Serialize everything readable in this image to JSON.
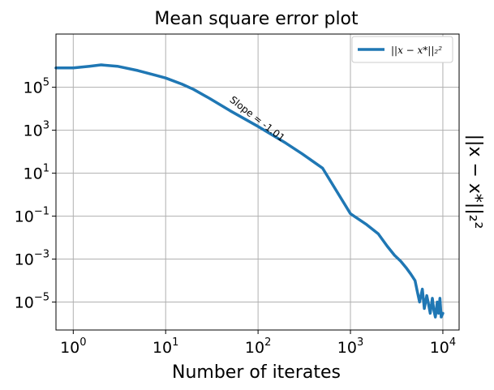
{
  "chart_data": {
    "type": "line",
    "title": "Mean square error plot",
    "xlabel": "Number of iterates",
    "ylabel": "||x − x*||₂²",
    "xscale": "log",
    "yscale": "log",
    "xlim": [
      0.65,
      15000
    ],
    "ylim": [
      5e-07,
      30000000.0
    ],
    "grid": true,
    "legend_placement": "top-right",
    "x_ticks": [
      {
        "base": "10",
        "exp": "0",
        "value": 1
      },
      {
        "base": "10",
        "exp": "1",
        "value": 10
      },
      {
        "base": "10",
        "exp": "2",
        "value": 100
      },
      {
        "base": "10",
        "exp": "3",
        "value": 1000
      },
      {
        "base": "10",
        "exp": "4",
        "value": 10000
      }
    ],
    "y_ticks": [
      {
        "base": "10",
        "exp": "5",
        "value": 100000
      },
      {
        "base": "10",
        "exp": "3",
        "value": 1000
      },
      {
        "base": "10",
        "exp": "1",
        "value": 10
      },
      {
        "base": "10",
        "exp": "−1",
        "value": 0.1
      },
      {
        "base": "10",
        "exp": "−3",
        "value": 0.001
      },
      {
        "base": "10",
        "exp": "−5",
        "value": 1e-05
      }
    ],
    "annotation": {
      "text": "Slope = -1.01",
      "x": 170,
      "y": 300,
      "angle": -38
    },
    "series": [
      {
        "name": "||x − x*||₂²",
        "color": "#1f77b4",
        "x": [
          0.65,
          1,
          1.5,
          2,
          3,
          5,
          8,
          10,
          15,
          20,
          30,
          50,
          100,
          200,
          300,
          500,
          1000,
          1500,
          2000,
          2500,
          3000,
          3500,
          4000,
          4500,
          5000,
          5300,
          5600,
          6000,
          6300,
          6700,
          7000,
          7300,
          7700,
          8000,
          8300,
          8700,
          9000,
          9300,
          9600,
          10000
        ],
        "y": [
          800000,
          800000,
          950000,
          1100000,
          950000,
          600000,
          350000,
          270000,
          140000,
          80000,
          30000,
          8000,
          1500,
          250,
          80,
          17,
          0.13,
          0.04,
          0.015,
          0.004,
          0.0015,
          0.0008,
          0.0004,
          0.0002,
          0.0001,
          3e-05,
          1e-05,
          4e-05,
          5e-06,
          2e-05,
          8e-06,
          3e-06,
          1.5e-05,
          4e-06,
          2e-06,
          1e-05,
          3e-06,
          1.5e-05,
          2e-06,
          3e-06
        ]
      }
    ]
  }
}
